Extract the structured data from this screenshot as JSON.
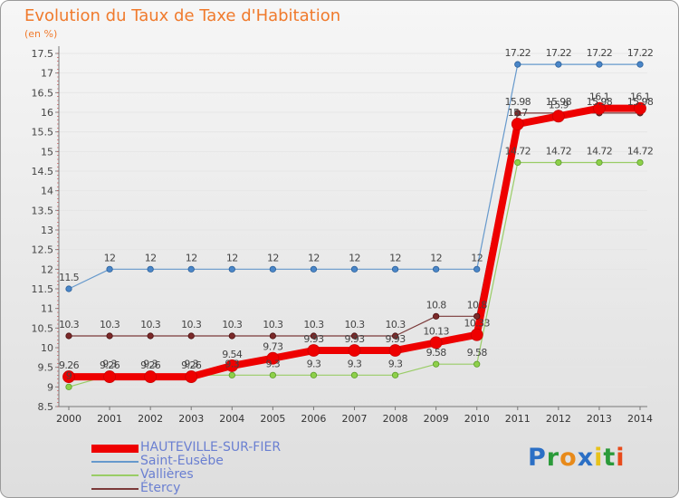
{
  "title": "Evolution du Taux de Taxe d'Habitation",
  "subtitle": "(en %)",
  "logo": {
    "p": "P",
    "r": "r",
    "o": "o",
    "x": "x",
    "i": "i",
    "t": "t",
    "i2": "i",
    "colors": [
      "#2b6fc5",
      "#2b9a3a",
      "#e88a1a",
      "#2b6fc5",
      "#e8c21a",
      "#2b9a3a",
      "#e84a1a"
    ]
  },
  "chart_data": {
    "type": "line",
    "title": "Evolution du Taux de Taxe d'Habitation",
    "ylabel": "(en %)",
    "xlabel": "",
    "ylim": [
      8.5,
      17.5
    ],
    "yticks": [
      "8.5",
      "9",
      "9.5",
      "10",
      "10.5",
      "11",
      "11.5",
      "12",
      "12.5",
      "13",
      "13.5",
      "14",
      "14.5",
      "15",
      "15.5",
      "16",
      "16.5",
      "17",
      "17.5"
    ],
    "categories": [
      "2000",
      "2001",
      "2002",
      "2003",
      "2004",
      "2005",
      "2006",
      "2007",
      "2008",
      "2009",
      "2010",
      "2011",
      "2012",
      "2013",
      "2014"
    ],
    "series": [
      {
        "name": "HAUTEVILLE-SUR-FIER",
        "color": "#ee0000",
        "values": [
          9.26,
          9.26,
          9.26,
          9.26,
          9.54,
          9.73,
          9.93,
          9.93,
          9.93,
          10.13,
          10.33,
          15.7,
          15.9,
          16.1,
          16.1
        ],
        "labels": [
          "9.26",
          "9.26",
          "9.26",
          "9.26",
          "9.54",
          "9.73",
          "9.93",
          "9.93",
          "9.93",
          "10.13",
          "10.33",
          "15.7",
          "15.9",
          "16.1",
          "16.1"
        ]
      },
      {
        "name": "Saint-Eusèbe",
        "color": "#6699cc",
        "values": [
          11.5,
          12,
          12,
          12,
          12,
          12,
          12,
          12,
          12,
          12,
          12,
          17.22,
          17.22,
          17.22,
          17.22
        ],
        "labels": [
          "11.5",
          "12",
          "12",
          "12",
          "12",
          "12",
          "12",
          "12",
          "12",
          "12",
          "12",
          "17.22",
          "17.22",
          "17.22",
          "17.22"
        ]
      },
      {
        "name": "Vallières",
        "color": "#99cc66",
        "values": [
          9,
          9.3,
          9.3,
          9.3,
          9.3,
          9.3,
          9.3,
          9.3,
          9.3,
          9.58,
          9.58,
          14.72,
          14.72,
          14.72,
          14.72
        ],
        "labels": [
          "9",
          "9.3",
          "9.3",
          "9.3",
          "9.3",
          "9.3",
          "9.3",
          "9.3",
          "9.3",
          "9.58",
          "9.58",
          "14.72",
          "14.72",
          "14.72",
          "14.72"
        ]
      },
      {
        "name": "Étercy",
        "color": "#7b3a3a",
        "values": [
          10.3,
          10.3,
          10.3,
          10.3,
          10.3,
          10.3,
          10.3,
          10.3,
          10.3,
          10.8,
          10.8,
          15.98,
          15.98,
          15.98,
          15.98
        ],
        "labels": [
          "10.3",
          "10.3",
          "10.3",
          "10.3",
          "10.3",
          "10.3",
          "10.3",
          "10.3",
          "10.3",
          "10.8",
          "10.8",
          "15.98",
          "15.98",
          "15.98",
          "15.98"
        ]
      }
    ],
    "legend": [
      "HAUTEVILLE-SUR-FIER",
      "Saint-Eusèbe",
      "Vallières",
      "Étercy"
    ],
    "legend_position": "bottom-left"
  }
}
